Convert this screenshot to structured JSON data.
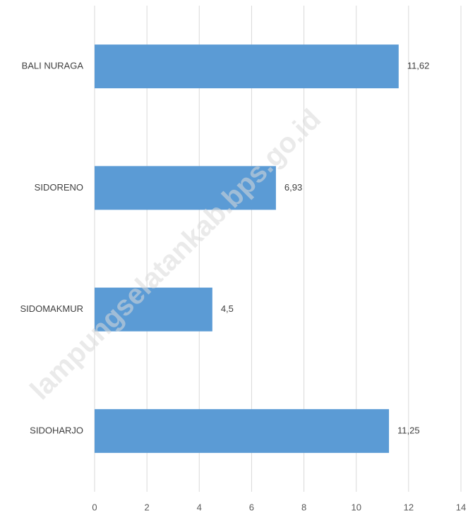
{
  "chart_data": {
    "type": "bar",
    "orientation": "horizontal",
    "categories": [
      "BALI NURAGA",
      "SIDORENO",
      "SIDOMAKMUR",
      "SIDOHARJO"
    ],
    "values": [
      11.62,
      6.93,
      4.5,
      11.25
    ],
    "value_labels": [
      "11,62",
      "6,93",
      "4,5",
      "11,25"
    ],
    "xlim": [
      0,
      14
    ],
    "x_ticks": [
      "0",
      "2",
      "4",
      "6",
      "8",
      "10",
      "12",
      "14"
    ],
    "grid": true,
    "bar_color": "#5b9bd5",
    "title": "",
    "xlabel": "",
    "ylabel": ""
  },
  "watermark": "lampungselatankab.bps.go.id"
}
